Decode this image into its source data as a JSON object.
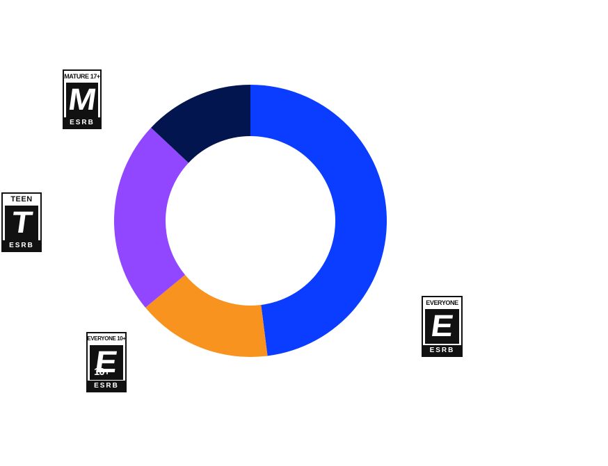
{
  "chart_data": {
    "type": "donut",
    "title": "",
    "colors": [
      "#0a3dff",
      "#f7931e",
      "#9146ff",
      "#03154f"
    ],
    "series": [
      {
        "label": "EVERYONE",
        "value": 48
      },
      {
        "label": "EVERYONE 10+",
        "value": 16
      },
      {
        "label": "TEEN",
        "value": 23
      },
      {
        "label": "MATURE 17+",
        "value": 13
      }
    ]
  },
  "badges": [
    {
      "top": "MATURE 17+",
      "glyph": "M",
      "sub": "",
      "bottom": "ESRB",
      "icon": "esrb-mature-icon"
    },
    {
      "top": "TEEN",
      "glyph": "T",
      "sub": "",
      "bottom": "ESRB",
      "icon": "esrb-teen-icon"
    },
    {
      "top": "EVERYONE 10+",
      "glyph": "E",
      "sub": "10+",
      "bottom": "ESRB",
      "icon": "esrb-everyone10-icon"
    },
    {
      "top": "EVERYONE",
      "glyph": "E",
      "sub": "",
      "bottom": "ESRB",
      "icon": "esrb-everyone-icon"
    }
  ]
}
